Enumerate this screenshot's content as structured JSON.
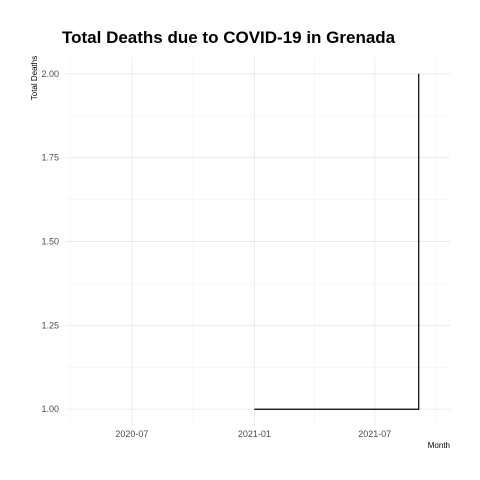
{
  "chart_data": {
    "type": "line",
    "title": "Total Deaths due to COVID-19 in Grenada",
    "xlabel": "Month",
    "ylabel": "Total Deaths",
    "x_ticks": [
      "2020-07",
      "2021-01",
      "2021-07"
    ],
    "y_ticks": [
      "1.00",
      "1.25",
      "1.50",
      "1.75",
      "2.00"
    ],
    "xlim": [
      "2020-03-24",
      "2021-10-22"
    ],
    "ylim": [
      0.95,
      2.05
    ],
    "grid": true,
    "series": [
      {
        "x": [
          "2021-01-01",
          "2021-09-05",
          "2021-09-05"
        ],
        "y": [
          1,
          1,
          2
        ]
      }
    ]
  }
}
